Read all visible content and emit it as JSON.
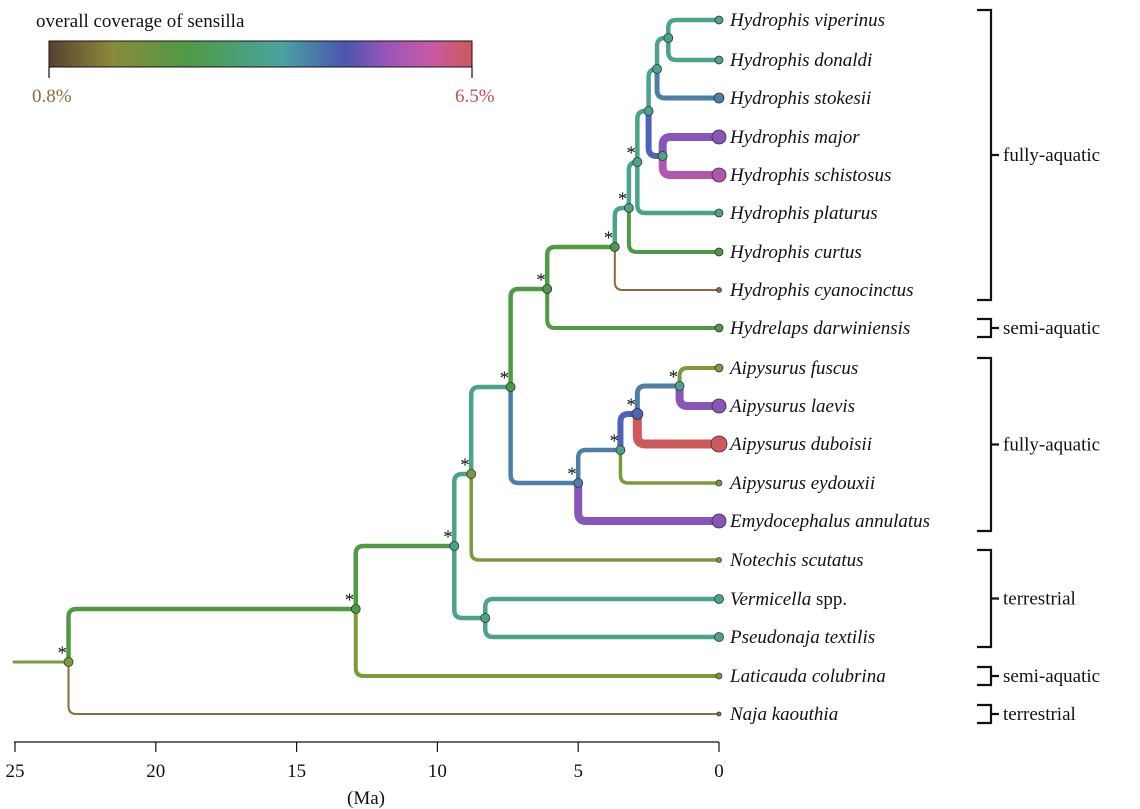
{
  "legend": {
    "title": "overall coverage of sensilla",
    "min_label": "0.8%",
    "max_label": "6.5%",
    "min_color": "#8a6a3e",
    "max_color": "#c0504d"
  },
  "axis": {
    "label": "(Ma)",
    "ticks": [
      "25",
      "20",
      "15",
      "10",
      "5",
      "0"
    ]
  },
  "significance_marker": "*",
  "taxa": [
    {
      "id": "t1",
      "genus": "Hydrophis",
      "epithet": "viperinus",
      "suffix": ""
    },
    {
      "id": "t2",
      "genus": "Hydrophis",
      "epithet": "donaldi",
      "suffix": ""
    },
    {
      "id": "t3",
      "genus": "Hydrophis",
      "epithet": "stokesii",
      "suffix": ""
    },
    {
      "id": "t4",
      "genus": "Hydrophis",
      "epithet": "major",
      "suffix": ""
    },
    {
      "id": "t5",
      "genus": "Hydrophis",
      "epithet": "schistosus",
      "suffix": ""
    },
    {
      "id": "t6",
      "genus": "Hydrophis",
      "epithet": "platurus",
      "suffix": ""
    },
    {
      "id": "t7",
      "genus": "Hydrophis",
      "epithet": "curtus",
      "suffix": ""
    },
    {
      "id": "t8",
      "genus": "Hydrophis",
      "epithet": "cyanocinctus",
      "suffix": ""
    },
    {
      "id": "t9",
      "genus": "Hydrelaps",
      "epithet": "darwiniensis",
      "suffix": ""
    },
    {
      "id": "t10",
      "genus": "Aipysurus",
      "epithet": "fuscus",
      "suffix": ""
    },
    {
      "id": "t11",
      "genus": "Aipysurus",
      "epithet": "laevis",
      "suffix": ""
    },
    {
      "id": "t12",
      "genus": "Aipysurus",
      "epithet": "duboisii",
      "suffix": ""
    },
    {
      "id": "t13",
      "genus": "Aipysurus",
      "epithet": "eydouxii",
      "suffix": ""
    },
    {
      "id": "t14",
      "genus": "Emydocephalus",
      "epithet": "annulatus",
      "suffix": ""
    },
    {
      "id": "t15",
      "genus": "Notechis",
      "epithet": "scutatus",
      "suffix": ""
    },
    {
      "id": "t16",
      "genus": "Vermicella",
      "epithet": "",
      "suffix": "spp."
    },
    {
      "id": "t17",
      "genus": "Pseudonaja",
      "epithet": "textilis",
      "suffix": ""
    },
    {
      "id": "t18",
      "genus": "Laticauda",
      "epithet": "colubrina",
      "suffix": ""
    },
    {
      "id": "t19",
      "genus": "Naja",
      "epithet": "kaouthia",
      "suffix": ""
    }
  ],
  "groups": [
    {
      "label": "fully-aquatic",
      "from": "t1",
      "to": "t8"
    },
    {
      "label": "semi-aquatic",
      "from": "t9",
      "to": "t9"
    },
    {
      "label": "fully-aquatic",
      "from": "t10",
      "to": "t14"
    },
    {
      "label": "terrestrial",
      "from": "t15",
      "to": "t17"
    },
    {
      "label": "semi-aquatic",
      "from": "t18",
      "to": "t18"
    },
    {
      "label": "terrestrial",
      "from": "t19",
      "to": "t19"
    }
  ],
  "colors": {
    "brown": "#8a6a3e",
    "olive": "#7a9a3c",
    "green": "#4e9a45",
    "teal": "#4aa38a",
    "tealblue": "#4a8faa",
    "steel": "#4c7fa8",
    "blue": "#4c63b8",
    "purple": "#8855b8",
    "magenta": "#b157b0",
    "red": "#cc5a5a"
  }
}
